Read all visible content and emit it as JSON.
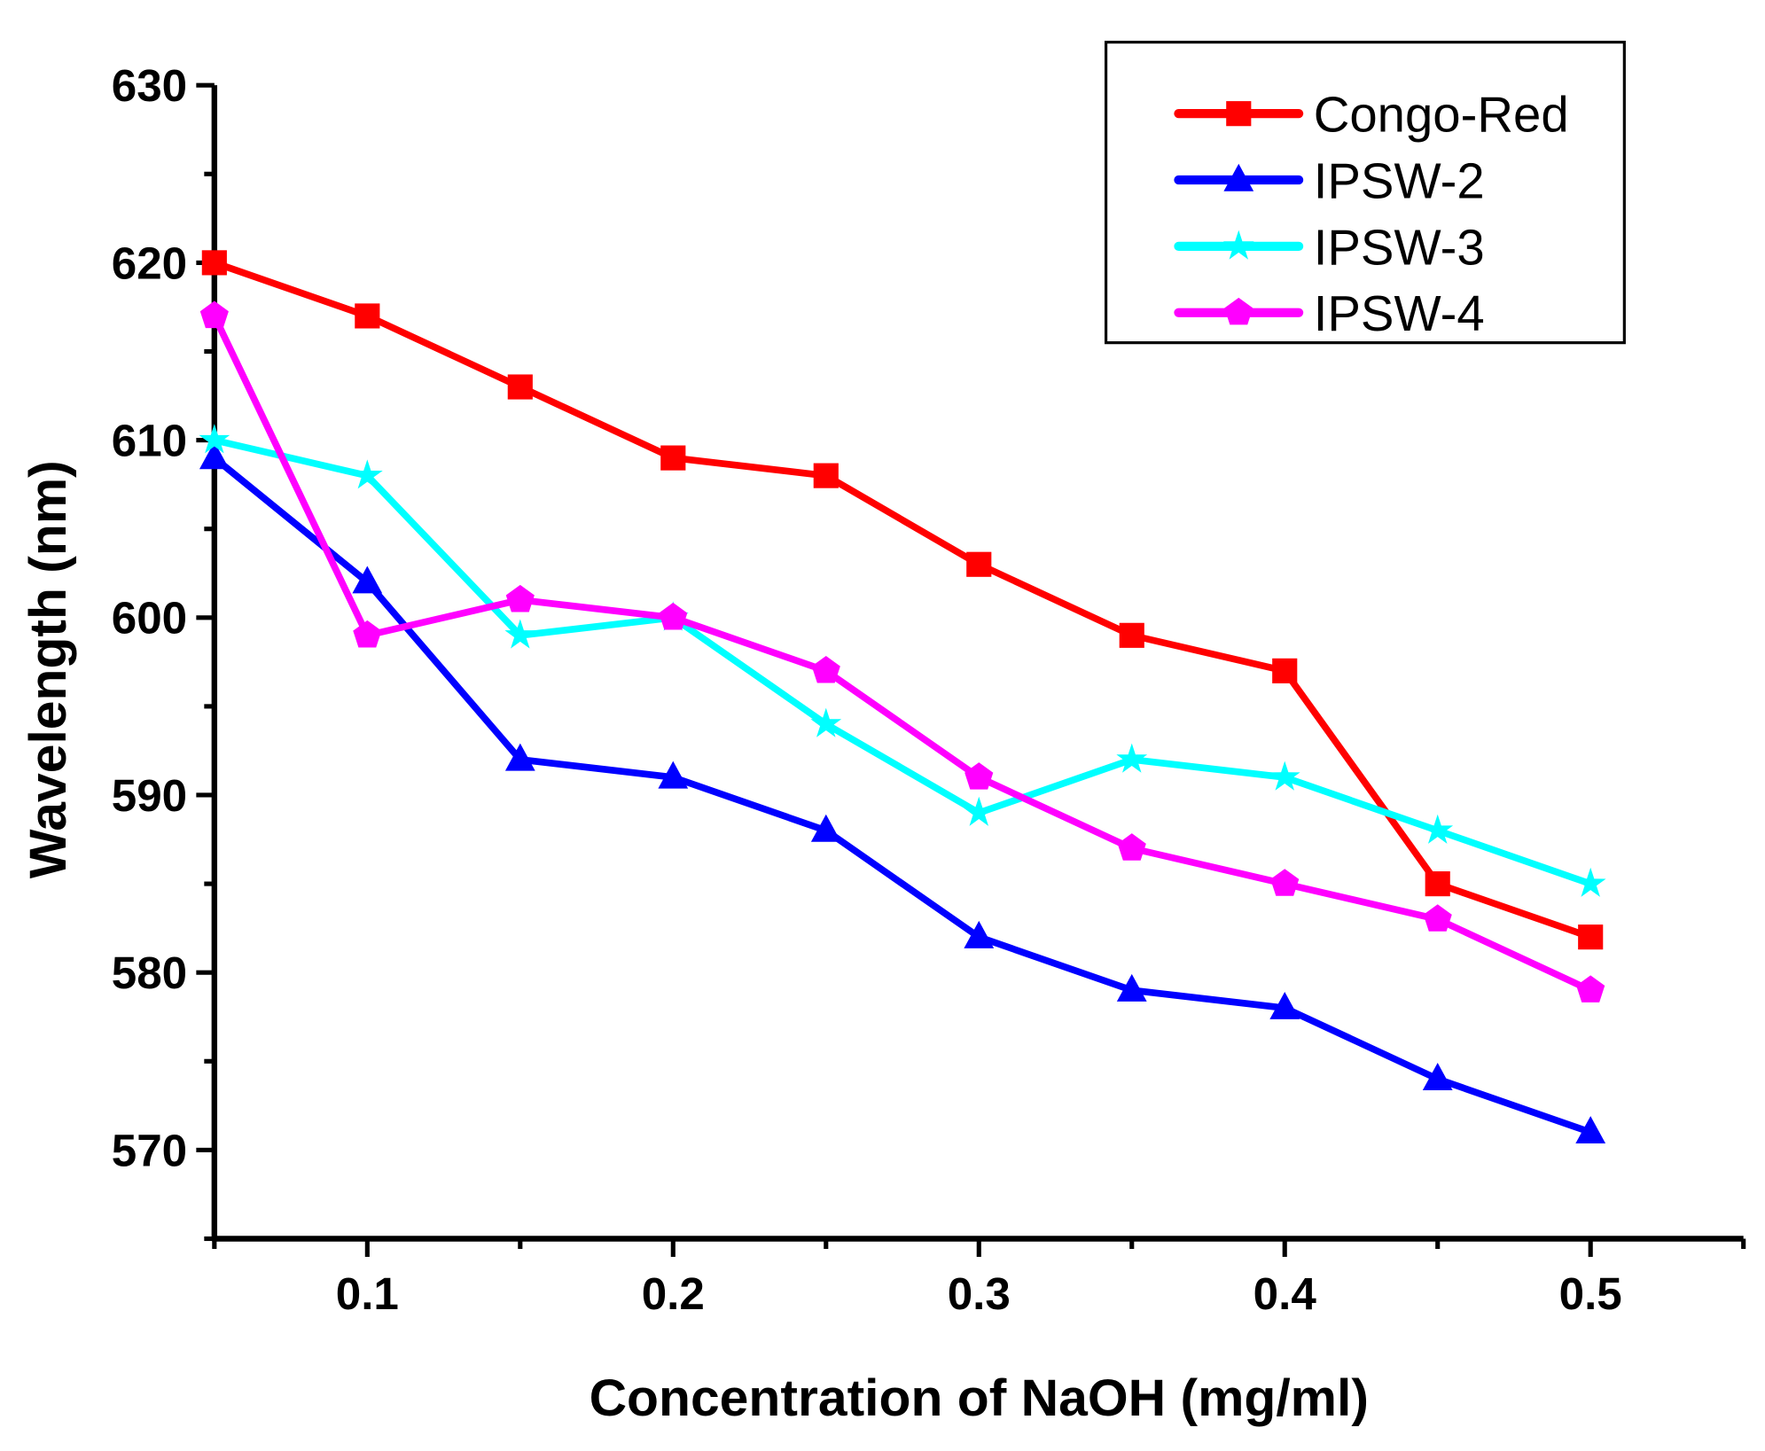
{
  "chart_data": {
    "type": "line",
    "title": "",
    "xlabel": "Concentration of NaOH (mg/ml)",
    "ylabel": "Wavelength (nm)",
    "xlim": [
      0.05,
      0.55
    ],
    "ylim": [
      565,
      630
    ],
    "xticks": [
      "0.1",
      "0.2",
      "0.3",
      "0.4",
      "0.5"
    ],
    "yticks": [
      "570",
      "580",
      "590",
      "600",
      "610",
      "620",
      "630"
    ],
    "grid": false,
    "legend_position": "top-right",
    "x": [
      0.05,
      0.1,
      0.15,
      0.2,
      0.25,
      0.3,
      0.35,
      0.4,
      0.45,
      0.5
    ],
    "series": [
      {
        "name": "Congo-Red",
        "color": "#ff0000",
        "marker": "square",
        "values": [
          620,
          617,
          613,
          609,
          608,
          603,
          599,
          597,
          585,
          582
        ]
      },
      {
        "name": "IPSW-2",
        "color": "#0000ff",
        "marker": "triangle",
        "values": [
          609,
          602,
          592,
          591,
          588,
          582,
          579,
          578,
          574,
          571
        ]
      },
      {
        "name": "IPSW-3",
        "color": "#00ffff",
        "marker": "star",
        "values": [
          610,
          608,
          599,
          600,
          594,
          589,
          592,
          591,
          588,
          585
        ]
      },
      {
        "name": "IPSW-4",
        "color": "#ff00ff",
        "marker": "pentagon",
        "values": [
          617,
          599,
          601,
          600,
          597,
          591,
          587,
          585,
          583,
          579
        ]
      }
    ]
  }
}
